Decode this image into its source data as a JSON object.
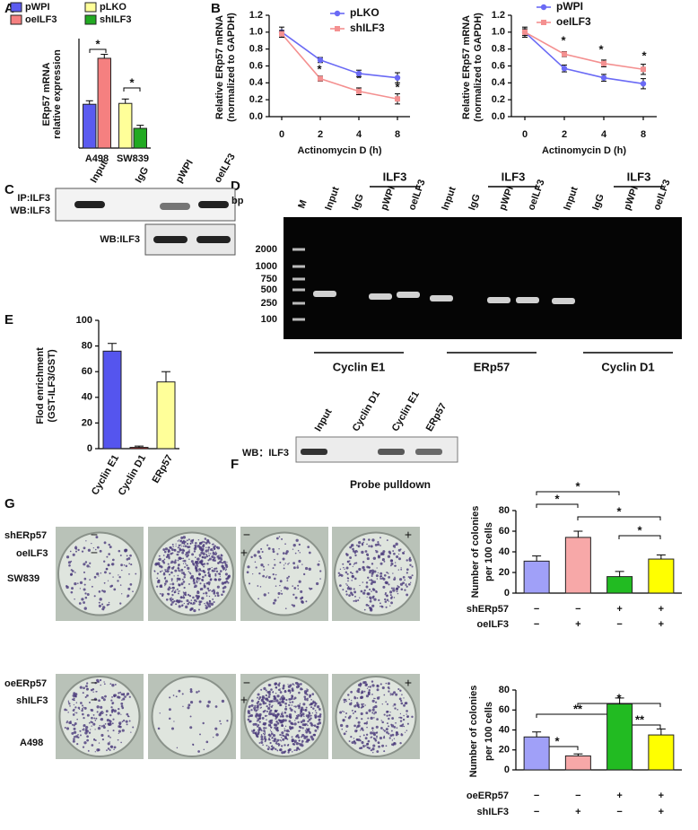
{
  "panel_labels": [
    "A",
    "B",
    "C",
    "D",
    "E",
    "F",
    "G"
  ],
  "chart_data": [
    {
      "type": "bar",
      "ylabel_lines": [
        "ERp57 mRNA",
        "relative expression"
      ],
      "categories": [
        "A498",
        "SW839"
      ],
      "series": [
        {
          "name": "pWPI",
          "color": "#5b5bf0",
          "values": [
            1.0,
            null
          ],
          "errors": [
            0.08,
            null
          ]
        },
        {
          "name": "oeILF3",
          "color": "#f58080",
          "values": [
            2.05,
            null
          ],
          "errors": [
            0.09,
            null
          ]
        },
        {
          "name": "pLKO",
          "color": "#ffff99",
          "values": [
            null,
            1.02
          ],
          "errors": [
            null,
            0.1
          ]
        },
        {
          "name": "shILF3",
          "color": "#22aa22",
          "values": [
            null,
            0.45
          ],
          "errors": [
            null,
            0.07
          ]
        }
      ],
      "ylim": [
        0,
        2.5
      ],
      "annotations": [
        "*",
        "*"
      ]
    },
    {
      "type": "line",
      "ylabel_lines": [
        "Relative ERp57 mRNA",
        "(normalized to GAPDH)"
      ],
      "xlabel": "Actinomycin D (h)",
      "categories": [
        "0",
        "2",
        "4",
        "8"
      ],
      "series": [
        {
          "name": "pLKO",
          "color": "#6a6af5",
          "values": [
            1.0,
            0.67,
            0.51,
            0.46
          ],
          "errors": [
            0.06,
            0.03,
            0.04,
            0.06
          ]
        },
        {
          "name": "shILF3",
          "color": "#f49090",
          "values": [
            0.98,
            0.45,
            0.3,
            0.21
          ],
          "errors": [
            0.04,
            0.03,
            0.04,
            0.06
          ]
        }
      ],
      "ylim": [
        0,
        1.2
      ],
      "yticks": [
        {
          "value": 0,
          "label": "0.0"
        },
        0.2,
        0.4,
        0.6,
        0.8,
        {
          "value": 1,
          "label": "1.0"
        },
        1.2
      ],
      "annotations": [
        "*",
        "*",
        "*"
      ]
    },
    {
      "type": "line",
      "ylabel_lines": [
        "Relative ERp57 mRNA",
        "(normalized to GAPDH)"
      ],
      "xlabel": "Actinomycin D (h)",
      "categories": [
        "0",
        "2",
        "4",
        "8"
      ],
      "series": [
        {
          "name": "pWPI",
          "color": "#6a6af5",
          "values": [
            1.0,
            0.57,
            0.46,
            0.39
          ],
          "errors": [
            0.06,
            0.04,
            0.04,
            0.06
          ]
        },
        {
          "name": "oeILF3",
          "color": "#f49090",
          "values": [
            1.0,
            0.74,
            0.63,
            0.56
          ],
          "errors": [
            0.04,
            0.03,
            0.04,
            0.06
          ]
        }
      ],
      "ylim": [
        0,
        1.2
      ],
      "yticks": [
        {
          "value": 0,
          "label": "0.0"
        },
        0.2,
        0.4,
        0.6,
        0.8,
        {
          "value": 1,
          "label": "1.0"
        },
        1.2
      ],
      "annotations": [
        "*",
        "*",
        "*"
      ]
    },
    {
      "type": "bar",
      "ylabel_lines": [
        "Flod enrichment",
        "(GST-ILF3/GST)"
      ],
      "categories": [
        "Cyclin E1",
        "Cyclin D1",
        "ERp57"
      ],
      "values": [
        76,
        1,
        52
      ],
      "errors": [
        6,
        1,
        8
      ],
      "colors": [
        "#5555ee",
        "#cc2222",
        "#ffff99"
      ],
      "ylim": [
        0,
        100
      ],
      "yticks": [
        0,
        20,
        40,
        60,
        80,
        100
      ]
    },
    {
      "type": "bar",
      "ylabel_lines": [
        "Number of colonies",
        "per 100 cells"
      ],
      "conditions": [
        {
          "name": "shERp57",
          "signs": [
            "−",
            "−",
            "+",
            "+"
          ]
        },
        {
          "name": "oeILF3",
          "signs": [
            "−",
            "+",
            "−",
            "+"
          ]
        }
      ],
      "values": [
        31,
        54,
        16,
        33
      ],
      "errors": [
        5,
        6,
        5,
        4
      ],
      "colors": [
        "#a0a0f8",
        "#f7a8a8",
        "#22bb22",
        "#ffff00"
      ],
      "ylim": [
        0,
        80
      ],
      "yticks": [
        0,
        20,
        40,
        60,
        80
      ],
      "annotations": [
        "*",
        "*",
        "*",
        "*"
      ]
    },
    {
      "type": "bar",
      "ylabel_lines": [
        "Number of colonies",
        "per 100 cells"
      ],
      "conditions": [
        {
          "name": "oeERp57",
          "signs": [
            "−",
            "−",
            "+",
            "+"
          ]
        },
        {
          "name": "shILF3",
          "signs": [
            "−",
            "+",
            "−",
            "+"
          ]
        }
      ],
      "values": [
        33,
        14,
        66,
        35
      ],
      "errors": [
        5,
        2,
        6,
        6
      ],
      "colors": [
        "#a0a0f8",
        "#f7a8a8",
        "#22bb22",
        "#ffff00"
      ],
      "ylim": [
        0,
        80
      ],
      "yticks": [
        0,
        20,
        40,
        60,
        80
      ],
      "annotations": [
        "*",
        "**",
        "**",
        "*"
      ]
    }
  ],
  "blot_c": {
    "lanes": [
      "Input",
      "IgG",
      "pWPI",
      "oeILF3"
    ],
    "row_labels": [
      "IP:ILF3",
      "WB:ILF3",
      "WB:ILF3"
    ]
  },
  "gel_d": {
    "unit": "bp",
    "marker": "M",
    "lanes": [
      "Input",
      "IgG",
      "pWPI",
      "oeILF3",
      "Input",
      "IgG",
      "pWPI",
      "oeILF3",
      "Input",
      "IgG",
      "pWPI",
      "oeILF3"
    ],
    "ilf3_labels": [
      "ILF3",
      "ILF3",
      "ILF3"
    ],
    "sizes": [
      "2000",
      "1000",
      "750",
      "500",
      "250",
      "100"
    ],
    "groups": [
      "Cyclin E1",
      "ERp57",
      "Cyclin D1"
    ]
  },
  "blot_f": {
    "lanes": [
      "Input",
      "Cyclin D1",
      "Cyclin E1",
      "ERp57"
    ],
    "row_label": "WB：ILF3",
    "caption": "Probe pulldown"
  },
  "colony_g": {
    "rows": [
      {
        "cell_line": "SW839",
        "treatments": [
          {
            "name": "shERp57",
            "signs": [
              "−",
              "−",
              "+"
            ]
          },
          {
            "name": "oeILF3",
            "signs": [
              "−",
              "+"
            ]
          }
        ]
      },
      {
        "cell_line": "A498",
        "treatments": [
          {
            "name": "oeERp57",
            "signs": [
              "−",
              "−",
              "+"
            ]
          },
          {
            "name": "shILF3",
            "signs": [
              "−",
              "+"
            ]
          }
        ]
      }
    ]
  }
}
